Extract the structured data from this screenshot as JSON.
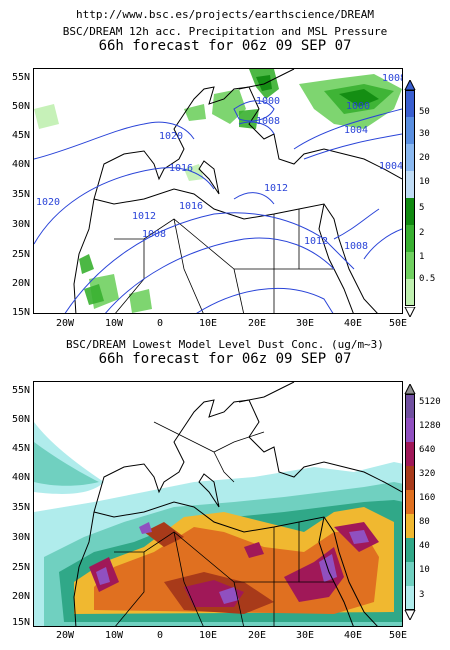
{
  "header": {
    "url": "http://www.bsc.es/projects/earthscience/DREAM"
  },
  "panel1": {
    "title1": "BSC/DREAM 12h acc. Precipitation and MSL Pressure",
    "title2": "66h forecast for 06z 09 SEP 07",
    "isobars": [
      "1020",
      "1016",
      "1016",
      "1012",
      "1012",
      "1012",
      "1008",
      "1008",
      "1008",
      "1004",
      "1004",
      "1000",
      "1000",
      "1020",
      "1008"
    ],
    "colorbar": {
      "labels": [
        "50",
        "30",
        "20",
        "10",
        "5",
        "2",
        "1",
        "0.5"
      ],
      "colors": [
        "#3a5fd0",
        "#5a8fe0",
        "#8ab8f0",
        "#c0dcf5",
        "#108a10",
        "#38b030",
        "#70d060",
        "#c0f0b0"
      ]
    }
  },
  "panel2": {
    "title1": "BSC/DREAM Lowest Model Level Dust Conc. (ug/m~3)",
    "title2": "66h forecast for 06z 09 SEP 07",
    "colorbar": {
      "labels": [
        "5120",
        "1280",
        "640",
        "320",
        "160",
        "80",
        "40",
        "10",
        "3"
      ],
      "colors": [
        "#7050a0",
        "#9050c0",
        "#a01858",
        "#a83a1a",
        "#e07020",
        "#f0b830",
        "#30a888",
        "#70d0c0",
        "#b0ecec"
      ]
    }
  },
  "axes": {
    "lat_labels": [
      "55N",
      "50N",
      "45N",
      "40N",
      "35N",
      "30N",
      "25N",
      "20N",
      "15N"
    ],
    "lon_labels": [
      "20W",
      "10W",
      "0",
      "10E",
      "20E",
      "30E",
      "40E",
      "50E"
    ]
  }
}
